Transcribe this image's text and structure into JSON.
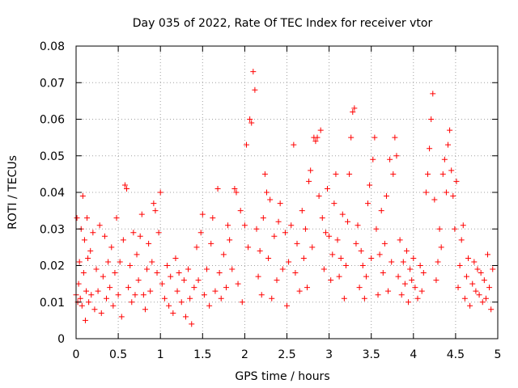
{
  "chart_data": {
    "type": "scatter",
    "title": "Day 035 of 2022, Rate Of TEC Index for receiver vtor",
    "xlabel": "GPS time / hours",
    "ylabel": "ROTI / TECUs",
    "xlim": [
      0,
      5
    ],
    "ylim": [
      0,
      0.08
    ],
    "x_ticks": [
      0,
      0.5,
      1,
      1.5,
      2,
      2.5,
      3,
      3.5,
      4,
      4.5,
      5
    ],
    "x_tick_labels": [
      "0",
      "0.5",
      "1",
      "1.5",
      "2",
      "2.5",
      "3",
      "3.5",
      "4",
      "4.5",
      "5"
    ],
    "y_ticks": [
      0,
      0.01,
      0.02,
      0.03,
      0.04,
      0.05,
      0.06,
      0.07,
      0.08
    ],
    "y_tick_labels": [
      "0",
      "0.01",
      "0.02",
      "0.03",
      "0.04",
      "0.05",
      "0.06",
      "0.07",
      "0.08"
    ],
    "grid": true,
    "marker": "+",
    "color": "#ff0000",
    "series": [
      {
        "name": "ROTI",
        "points": [
          [
            0.0,
            0.012
          ],
          [
            0.01,
            0.033
          ],
          [
            0.02,
            0.01
          ],
          [
            0.03,
            0.015
          ],
          [
            0.04,
            0.021
          ],
          [
            0.05,
            0.011
          ],
          [
            0.06,
            0.03
          ],
          [
            0.07,
            0.009
          ],
          [
            0.08,
            0.039
          ],
          [
            0.09,
            0.018
          ],
          [
            0.1,
            0.027
          ],
          [
            0.11,
            0.005
          ],
          [
            0.12,
            0.013
          ],
          [
            0.13,
            0.033
          ],
          [
            0.14,
            0.022
          ],
          [
            0.15,
            0.01
          ],
          [
            0.17,
            0.024
          ],
          [
            0.18,
            0.012
          ],
          [
            0.2,
            0.029
          ],
          [
            0.22,
            0.008
          ],
          [
            0.24,
            0.019
          ],
          [
            0.26,
            0.013
          ],
          [
            0.28,
            0.031
          ],
          [
            0.3,
            0.007
          ],
          [
            0.32,
            0.017
          ],
          [
            0.34,
            0.028
          ],
          [
            0.36,
            0.011
          ],
          [
            0.38,
            0.021
          ],
          [
            0.4,
            0.014
          ],
          [
            0.42,
            0.025
          ],
          [
            0.44,
            0.009
          ],
          [
            0.46,
            0.018
          ],
          [
            0.48,
            0.033
          ],
          [
            0.5,
            0.012
          ],
          [
            0.52,
            0.021
          ],
          [
            0.54,
            0.006
          ],
          [
            0.56,
            0.027
          ],
          [
            0.58,
            0.042
          ],
          [
            0.6,
            0.041
          ],
          [
            0.62,
            0.014
          ],
          [
            0.64,
            0.02
          ],
          [
            0.66,
            0.01
          ],
          [
            0.68,
            0.029
          ],
          [
            0.7,
            0.012
          ],
          [
            0.72,
            0.023
          ],
          [
            0.74,
            0.016
          ],
          [
            0.76,
            0.028
          ],
          [
            0.78,
            0.034
          ],
          [
            0.8,
            0.012
          ],
          [
            0.82,
            0.008
          ],
          [
            0.84,
            0.019
          ],
          [
            0.86,
            0.026
          ],
          [
            0.88,
            0.013
          ],
          [
            0.9,
            0.021
          ],
          [
            0.92,
            0.037
          ],
          [
            0.94,
            0.035
          ],
          [
            0.96,
            0.018
          ],
          [
            0.98,
            0.029
          ],
          [
            1.0,
            0.04
          ],
          [
            1.02,
            0.015
          ],
          [
            1.05,
            0.011
          ],
          [
            1.08,
            0.02
          ],
          [
            1.1,
            0.009
          ],
          [
            1.12,
            0.017
          ],
          [
            1.15,
            0.007
          ],
          [
            1.18,
            0.022
          ],
          [
            1.2,
            0.013
          ],
          [
            1.22,
            0.018
          ],
          [
            1.25,
            0.01
          ],
          [
            1.28,
            0.016
          ],
          [
            1.3,
            0.006
          ],
          [
            1.33,
            0.019
          ],
          [
            1.35,
            0.011
          ],
          [
            1.37,
            0.004
          ],
          [
            1.4,
            0.014
          ],
          [
            1.43,
            0.025
          ],
          [
            1.45,
            0.016
          ],
          [
            1.48,
            0.029
          ],
          [
            1.5,
            0.034
          ],
          [
            1.52,
            0.012
          ],
          [
            1.55,
            0.019
          ],
          [
            1.58,
            0.009
          ],
          [
            1.6,
            0.026
          ],
          [
            1.62,
            0.033
          ],
          [
            1.65,
            0.013
          ],
          [
            1.68,
            0.041
          ],
          [
            1.7,
            0.018
          ],
          [
            1.72,
            0.011
          ],
          [
            1.75,
            0.023
          ],
          [
            1.78,
            0.014
          ],
          [
            1.8,
            0.031
          ],
          [
            1.82,
            0.027
          ],
          [
            1.85,
            0.019
          ],
          [
            1.88,
            0.041
          ],
          [
            1.9,
            0.04
          ],
          [
            1.92,
            0.015
          ],
          [
            1.95,
            0.035
          ],
          [
            1.97,
            0.01
          ],
          [
            2.0,
            0.031
          ],
          [
            2.02,
            0.053
          ],
          [
            2.04,
            0.025
          ],
          [
            2.06,
            0.06
          ],
          [
            2.08,
            0.059
          ],
          [
            2.1,
            0.073
          ],
          [
            2.12,
            0.068
          ],
          [
            2.14,
            0.03
          ],
          [
            2.16,
            0.017
          ],
          [
            2.18,
            0.024
          ],
          [
            2.2,
            0.012
          ],
          [
            2.22,
            0.033
          ],
          [
            2.24,
            0.045
          ],
          [
            2.26,
            0.04
          ],
          [
            2.28,
            0.022
          ],
          [
            2.3,
            0.038
          ],
          [
            2.32,
            0.011
          ],
          [
            2.35,
            0.028
          ],
          [
            2.38,
            0.016
          ],
          [
            2.4,
            0.032
          ],
          [
            2.42,
            0.037
          ],
          [
            2.45,
            0.019
          ],
          [
            2.48,
            0.029
          ],
          [
            2.5,
            0.009
          ],
          [
            2.52,
            0.021
          ],
          [
            2.55,
            0.031
          ],
          [
            2.58,
            0.053
          ],
          [
            2.6,
            0.018
          ],
          [
            2.62,
            0.026
          ],
          [
            2.65,
            0.013
          ],
          [
            2.68,
            0.035
          ],
          [
            2.7,
            0.022
          ],
          [
            2.72,
            0.03
          ],
          [
            2.74,
            0.014
          ],
          [
            2.76,
            0.043
          ],
          [
            2.78,
            0.046
          ],
          [
            2.8,
            0.025
          ],
          [
            2.82,
            0.055
          ],
          [
            2.84,
            0.054
          ],
          [
            2.86,
            0.055
          ],
          [
            2.88,
            0.039
          ],
          [
            2.9,
            0.057
          ],
          [
            2.92,
            0.033
          ],
          [
            2.94,
            0.019
          ],
          [
            2.96,
            0.029
          ],
          [
            2.98,
            0.041
          ],
          [
            3.0,
            0.028
          ],
          [
            3.02,
            0.016
          ],
          [
            3.04,
            0.023
          ],
          [
            3.06,
            0.037
          ],
          [
            3.08,
            0.045
          ],
          [
            3.1,
            0.027
          ],
          [
            3.12,
            0.017
          ],
          [
            3.14,
            0.022
          ],
          [
            3.16,
            0.034
          ],
          [
            3.18,
            0.011
          ],
          [
            3.2,
            0.02
          ],
          [
            3.22,
            0.032
          ],
          [
            3.24,
            0.045
          ],
          [
            3.26,
            0.055
          ],
          [
            3.28,
            0.062
          ],
          [
            3.3,
            0.063
          ],
          [
            3.32,
            0.026
          ],
          [
            3.34,
            0.031
          ],
          [
            3.36,
            0.014
          ],
          [
            3.38,
            0.024
          ],
          [
            3.4,
            0.02
          ],
          [
            3.42,
            0.011
          ],
          [
            3.44,
            0.017
          ],
          [
            3.46,
            0.037
          ],
          [
            3.48,
            0.042
          ],
          [
            3.5,
            0.022
          ],
          [
            3.52,
            0.049
          ],
          [
            3.54,
            0.055
          ],
          [
            3.56,
            0.03
          ],
          [
            3.58,
            0.012
          ],
          [
            3.6,
            0.023
          ],
          [
            3.62,
            0.035
          ],
          [
            3.64,
            0.018
          ],
          [
            3.66,
            0.026
          ],
          [
            3.68,
            0.039
          ],
          [
            3.7,
            0.013
          ],
          [
            3.72,
            0.049
          ],
          [
            3.74,
            0.021
          ],
          [
            3.76,
            0.045
          ],
          [
            3.78,
            0.055
          ],
          [
            3.8,
            0.05
          ],
          [
            3.82,
            0.017
          ],
          [
            3.84,
            0.027
          ],
          [
            3.86,
            0.012
          ],
          [
            3.88,
            0.021
          ],
          [
            3.9,
            0.015
          ],
          [
            3.92,
            0.024
          ],
          [
            3.94,
            0.01
          ],
          [
            3.96,
            0.019
          ],
          [
            3.98,
            0.016
          ],
          [
            4.0,
            0.022
          ],
          [
            4.02,
            0.014
          ],
          [
            4.05,
            0.011
          ],
          [
            4.08,
            0.02
          ],
          [
            4.1,
            0.013
          ],
          [
            4.12,
            0.018
          ],
          [
            4.15,
            0.04
          ],
          [
            4.17,
            0.045
          ],
          [
            4.19,
            0.052
          ],
          [
            4.21,
            0.06
          ],
          [
            4.23,
            0.067
          ],
          [
            4.25,
            0.038
          ],
          [
            4.27,
            0.016
          ],
          [
            4.29,
            0.021
          ],
          [
            4.31,
            0.03
          ],
          [
            4.33,
            0.025
          ],
          [
            4.35,
            0.045
          ],
          [
            4.37,
            0.049
          ],
          [
            4.39,
            0.04
          ],
          [
            4.41,
            0.053
          ],
          [
            4.43,
            0.057
          ],
          [
            4.45,
            0.046
          ],
          [
            4.47,
            0.039
          ],
          [
            4.49,
            0.03
          ],
          [
            4.51,
            0.043
          ],
          [
            4.53,
            0.014
          ],
          [
            4.55,
            0.02
          ],
          [
            4.57,
            0.027
          ],
          [
            4.59,
            0.031
          ],
          [
            4.61,
            0.011
          ],
          [
            4.63,
            0.017
          ],
          [
            4.65,
            0.022
          ],
          [
            4.67,
            0.009
          ],
          [
            4.7,
            0.015
          ],
          [
            4.72,
            0.021
          ],
          [
            4.74,
            0.013
          ],
          [
            4.76,
            0.019
          ],
          [
            4.78,
            0.012
          ],
          [
            4.8,
            0.018
          ],
          [
            4.82,
            0.01
          ],
          [
            4.84,
            0.016
          ],
          [
            4.86,
            0.011
          ],
          [
            4.88,
            0.023
          ],
          [
            4.9,
            0.014
          ],
          [
            4.92,
            0.008
          ],
          [
            4.94,
            0.019
          ]
        ]
      }
    ]
  }
}
